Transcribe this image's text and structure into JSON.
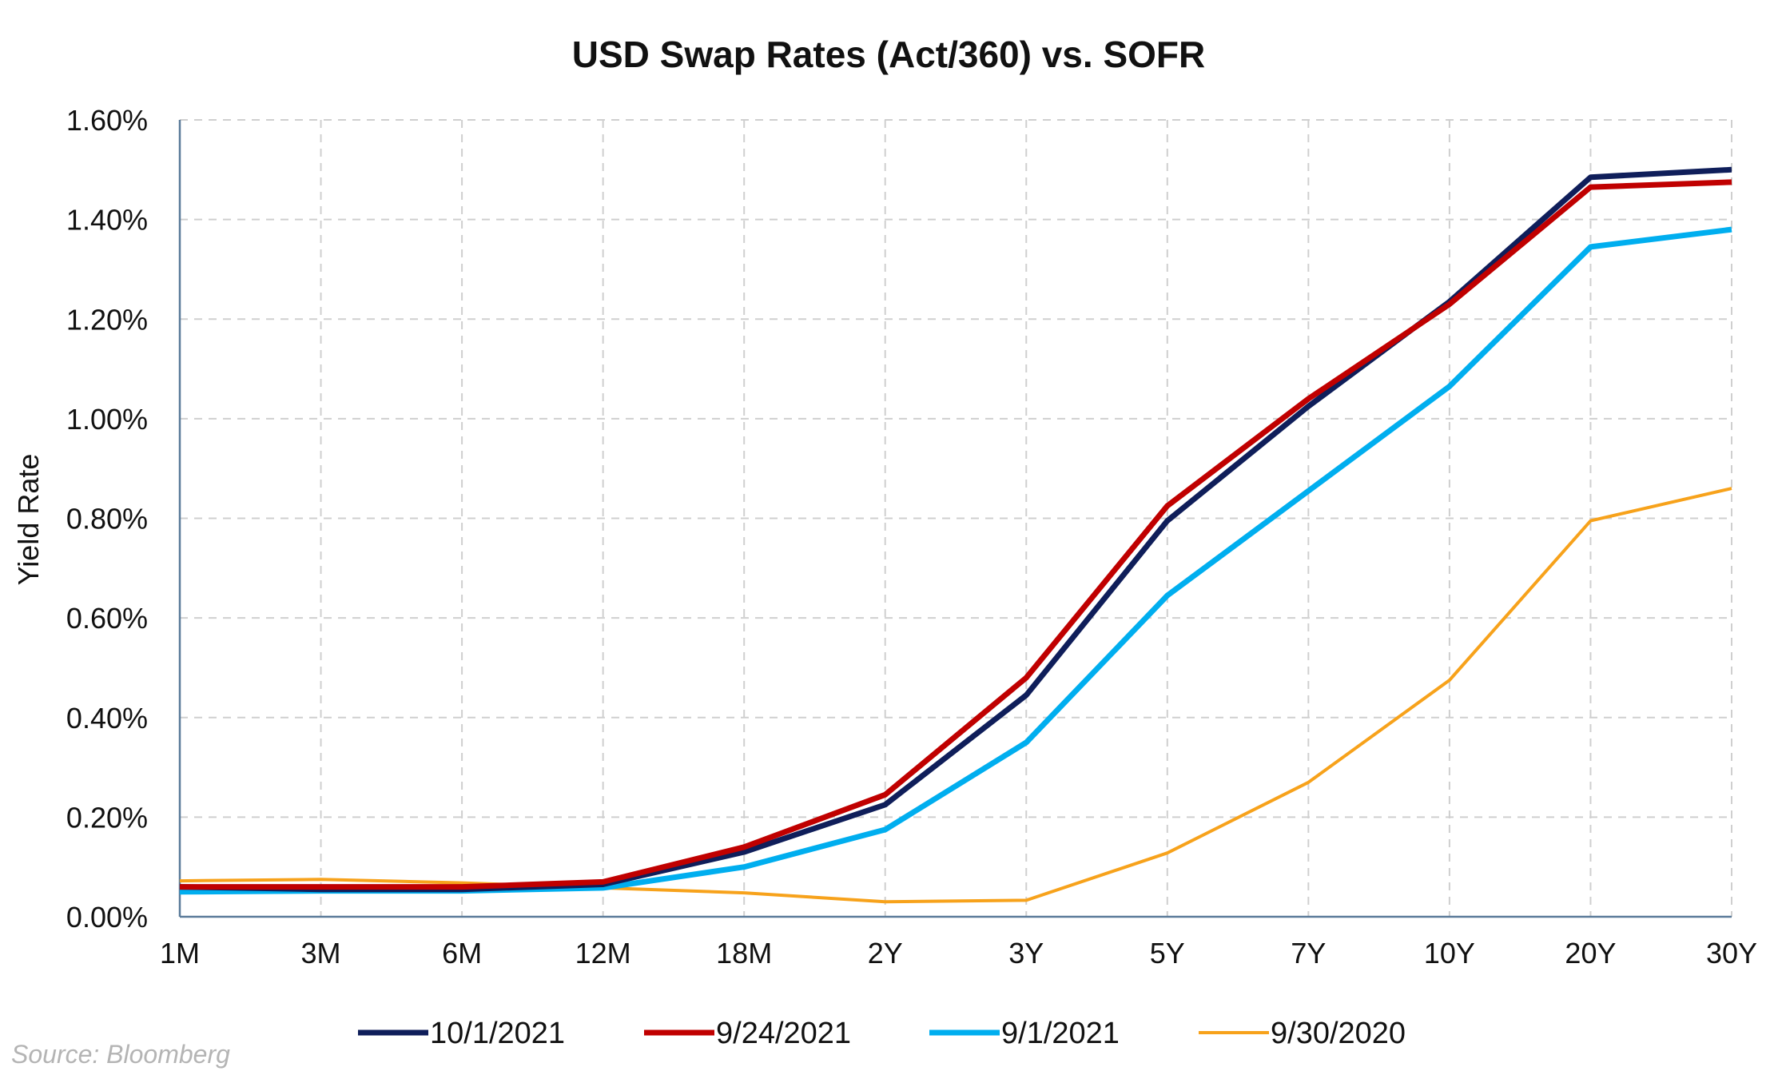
{
  "chart_data": {
    "type": "line",
    "title": "USD Swap Rates (Act/360) vs. SOFR",
    "xlabel": "",
    "ylabel": "Yield Rate",
    "categories": [
      "1M",
      "3M",
      "6M",
      "12M",
      "18M",
      "2Y",
      "3Y",
      "5Y",
      "7Y",
      "10Y",
      "20Y",
      "30Y"
    ],
    "ylim": [
      0,
      1.6
    ],
    "yticks": [
      0,
      0.2,
      0.4,
      0.6,
      0.8,
      1.0,
      1.2,
      1.4,
      1.6
    ],
    "ytick_labels": [
      "0.00%",
      "0.20%",
      "0.40%",
      "0.60%",
      "0.80%",
      "1.00%",
      "1.20%",
      "1.40%",
      "1.60%"
    ],
    "grid": true,
    "legend_position": "bottom",
    "series": [
      {
        "name": "10/1/2021",
        "color": "#0f1e5a",
        "values": [
          0.06,
          0.055,
          0.055,
          0.065,
          0.13,
          0.225,
          0.445,
          0.795,
          1.025,
          1.235,
          1.485,
          1.5
        ]
      },
      {
        "name": "9/24/2021",
        "color": "#c00000",
        "values": [
          0.06,
          0.06,
          0.06,
          0.07,
          0.14,
          0.245,
          0.48,
          0.825,
          1.04,
          1.23,
          1.465,
          1.475
        ]
      },
      {
        "name": "9/1/2021",
        "color": "#00aeef",
        "values": [
          0.05,
          0.052,
          0.052,
          0.058,
          0.1,
          0.175,
          0.35,
          0.645,
          0.855,
          1.065,
          1.345,
          1.38
        ]
      },
      {
        "name": "9/30/2020",
        "color": "#f7a21b",
        "values": [
          0.072,
          0.075,
          0.068,
          0.058,
          0.048,
          0.03,
          0.033,
          0.128,
          0.27,
          0.475,
          0.795,
          0.86
        ]
      }
    ]
  },
  "source": "Source: Bloomberg"
}
